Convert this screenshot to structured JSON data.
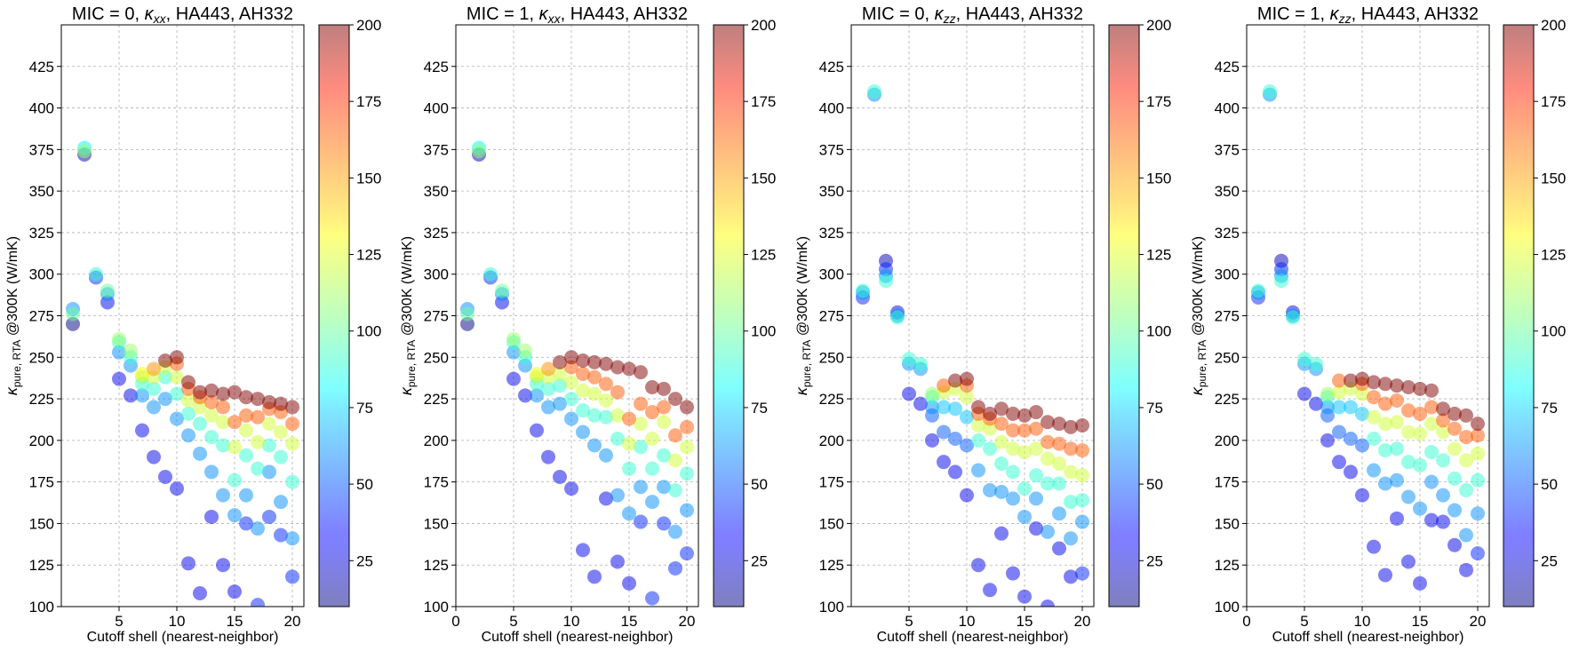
{
  "figure": {
    "xlabel": "Cutoff shell (nearest-neighbor)",
    "ylabel_main": "κ",
    "ylabel_sub": "pure, RTA",
    "ylabel_rest": " @300K (W/mK)"
  },
  "chart_data": [
    {
      "type": "scatter",
      "title_prefix": "MIC = 0, ",
      "title_kappa_sub": "xx",
      "title_suffix": ", HA443, AH332",
      "xlim": [
        0,
        21
      ],
      "ylim": [
        100,
        450
      ],
      "xticks": [
        5,
        10,
        15,
        20
      ],
      "yticks": [
        100,
        125,
        150,
        175,
        200,
        225,
        250,
        275,
        300,
        325,
        350,
        375,
        400,
        425
      ],
      "colorbar": {
        "min": 10,
        "max": 200,
        "ticks": [
          25,
          50,
          75,
          100,
          125,
          150,
          175,
          200
        ],
        "cmap": "jet",
        "alpha": 0.5
      },
      "x": [
        1,
        1,
        1,
        2,
        2,
        2,
        3,
        3,
        4,
        4,
        4,
        5,
        5,
        5,
        5,
        6,
        6,
        6,
        6,
        7,
        7,
        7,
        7,
        7,
        8,
        8,
        8,
        8,
        8,
        9,
        9,
        9,
        9,
        9,
        10,
        10,
        10,
        10,
        10,
        10,
        11,
        11,
        11,
        11,
        11,
        11,
        12,
        12,
        12,
        12,
        12,
        12,
        13,
        13,
        13,
        13,
        13,
        13,
        14,
        14,
        14,
        14,
        14,
        14,
        15,
        15,
        15,
        15,
        15,
        15,
        16,
        16,
        16,
        16,
        16,
        16,
        17,
        17,
        17,
        17,
        17,
        17,
        18,
        18,
        18,
        18,
        18,
        18,
        19,
        19,
        19,
        19,
        19,
        19,
        20,
        20,
        20,
        20,
        20,
        20
      ],
      "y": [
        270,
        279,
        276,
        372,
        376,
        374,
        298,
        300,
        283,
        288,
        290,
        237,
        253,
        259,
        261,
        227,
        245,
        250,
        254,
        206,
        227,
        234,
        238,
        240,
        190,
        220,
        231,
        238,
        243,
        178,
        225,
        238,
        244,
        248,
        171,
        213,
        228,
        238,
        246,
        250,
        126,
        203,
        216,
        224,
        231,
        235,
        108,
        192,
        210,
        220,
        226,
        229,
        154,
        181,
        202,
        215,
        223,
        230,
        125,
        167,
        197,
        211,
        220,
        228,
        109,
        155,
        176,
        196,
        211,
        229,
        150,
        167,
        191,
        206,
        215,
        226,
        101,
        147,
        183,
        199,
        214,
        225,
        154,
        181,
        197,
        210,
        219,
        223,
        143,
        163,
        190,
        205,
        217,
        222,
        118,
        141,
        175,
        198,
        210,
        220
      ],
      "c": [
        10,
        60,
        100,
        20,
        80,
        110,
        40,
        90,
        30,
        60,
        100,
        30,
        60,
        90,
        110,
        30,
        60,
        90,
        110,
        30,
        60,
        90,
        110,
        130,
        30,
        60,
        90,
        120,
        150,
        30,
        60,
        90,
        120,
        200,
        30,
        60,
        90,
        120,
        160,
        200,
        30,
        60,
        90,
        120,
        160,
        200,
        30,
        60,
        90,
        120,
        160,
        200,
        30,
        60,
        90,
        120,
        160,
        200,
        30,
        60,
        90,
        120,
        160,
        200,
        30,
        60,
        90,
        120,
        160,
        200,
        40,
        60,
        90,
        120,
        160,
        200,
        40,
        60,
        90,
        120,
        160,
        200,
        40,
        60,
        90,
        120,
        160,
        200,
        40,
        60,
        90,
        120,
        160,
        200,
        40,
        60,
        90,
        120,
        160,
        200
      ]
    },
    {
      "type": "scatter",
      "title_prefix": "MIC = 1, ",
      "title_kappa_sub": "xx",
      "title_suffix": ", HA443, AH332",
      "xlim": [
        0,
        21
      ],
      "ylim": [
        100,
        450
      ],
      "xticks": [
        0,
        5,
        10,
        15,
        20
      ],
      "yticks": [
        100,
        125,
        150,
        175,
        200,
        225,
        250,
        275,
        300,
        325,
        350,
        375,
        400,
        425
      ],
      "colorbar": {
        "min": 10,
        "max": 200,
        "ticks": [
          25,
          50,
          75,
          100,
          125,
          150,
          175,
          200
        ],
        "cmap": "jet",
        "alpha": 0.5
      },
      "x": [
        1,
        1,
        1,
        2,
        2,
        2,
        3,
        3,
        4,
        4,
        4,
        5,
        5,
        5,
        5,
        6,
        6,
        6,
        6,
        7,
        7,
        7,
        7,
        7,
        8,
        8,
        8,
        8,
        8,
        9,
        9,
        9,
        9,
        9,
        10,
        10,
        10,
        10,
        10,
        10,
        11,
        11,
        11,
        11,
        11,
        11,
        12,
        12,
        12,
        12,
        12,
        12,
        13,
        13,
        13,
        13,
        13,
        13,
        14,
        14,
        14,
        14,
        14,
        14,
        15,
        15,
        15,
        15,
        15,
        15,
        16,
        16,
        16,
        16,
        16,
        16,
        17,
        17,
        17,
        17,
        17,
        17,
        18,
        18,
        18,
        18,
        18,
        18,
        19,
        19,
        19,
        19,
        19,
        19,
        20,
        20,
        20,
        20,
        20,
        20
      ],
      "y": [
        270,
        279,
        276,
        372,
        376,
        374,
        298,
        300,
        283,
        288,
        290,
        237,
        253,
        259,
        261,
        227,
        245,
        250,
        254,
        206,
        227,
        234,
        238,
        240,
        190,
        220,
        231,
        238,
        243,
        178,
        222,
        233,
        240,
        247,
        171,
        213,
        225,
        235,
        244,
        250,
        134,
        205,
        218,
        230,
        240,
        248,
        118,
        197,
        215,
        228,
        238,
        247,
        165,
        191,
        214,
        224,
        234,
        246,
        127,
        167,
        201,
        215,
        229,
        244,
        114,
        156,
        183,
        198,
        213,
        243,
        151,
        172,
        196,
        210,
        222,
        241,
        105,
        163,
        183,
        201,
        217,
        232,
        150,
        172,
        191,
        211,
        220,
        231,
        123,
        145,
        170,
        188,
        203,
        225,
        132,
        158,
        180,
        196,
        208,
        220
      ],
      "c": [
        10,
        60,
        100,
        20,
        80,
        110,
        40,
        90,
        30,
        60,
        100,
        30,
        60,
        90,
        110,
        30,
        60,
        90,
        110,
        30,
        60,
        90,
        110,
        130,
        30,
        60,
        90,
        120,
        150,
        30,
        60,
        90,
        120,
        200,
        30,
        60,
        90,
        120,
        160,
        200,
        30,
        60,
        90,
        120,
        160,
        200,
        30,
        60,
        90,
        120,
        160,
        200,
        30,
        60,
        90,
        120,
        160,
        200,
        30,
        60,
        90,
        120,
        160,
        200,
        30,
        60,
        90,
        120,
        160,
        200,
        40,
        60,
        90,
        120,
        160,
        200,
        40,
        60,
        90,
        120,
        160,
        200,
        40,
        60,
        90,
        120,
        160,
        200,
        40,
        60,
        90,
        120,
        160,
        200,
        40,
        60,
        90,
        120,
        160,
        200
      ]
    },
    {
      "type": "scatter",
      "title_prefix": "MIC = 0, ",
      "title_kappa_sub": "zz",
      "title_suffix": ", HA443, AH332",
      "xlim": [
        0,
        21
      ],
      "ylim": [
        100,
        450
      ],
      "xticks": [
        5,
        10,
        15,
        20
      ],
      "yticks": [
        100,
        125,
        150,
        175,
        200,
        225,
        250,
        275,
        300,
        325,
        350,
        375,
        400,
        425
      ],
      "colorbar": {
        "min": 10,
        "max": 200,
        "ticks": [
          25,
          50,
          75,
          100,
          125,
          150,
          175,
          200
        ],
        "cmap": "jet",
        "alpha": 0.5
      },
      "x": [
        1,
        1,
        1,
        2,
        2,
        3,
        3,
        3,
        3,
        4,
        4,
        4,
        5,
        5,
        5,
        6,
        6,
        6,
        7,
        7,
        7,
        7,
        7,
        8,
        8,
        8,
        8,
        8,
        9,
        9,
        9,
        9,
        9,
        10,
        10,
        10,
        10,
        10,
        10,
        11,
        11,
        11,
        11,
        11,
        11,
        12,
        12,
        12,
        12,
        12,
        12,
        13,
        13,
        13,
        13,
        13,
        13,
        14,
        14,
        14,
        14,
        14,
        14,
        15,
        15,
        15,
        15,
        15,
        15,
        16,
        16,
        16,
        16,
        16,
        16,
        17,
        17,
        17,
        17,
        17,
        17,
        18,
        18,
        18,
        18,
        18,
        18,
        19,
        19,
        19,
        19,
        19,
        19,
        20,
        20,
        20,
        20,
        20,
        20
      ],
      "y": [
        286,
        289,
        290,
        408,
        410,
        308,
        303,
        299,
        296,
        277,
        275,
        274,
        228,
        246,
        249,
        222,
        243,
        246,
        200,
        215,
        220,
        226,
        228,
        187,
        205,
        220,
        229,
        233,
        181,
        201,
        219,
        231,
        236,
        167,
        197,
        214,
        226,
        233,
        237,
        125,
        182,
        200,
        209,
        216,
        220,
        110,
        170,
        195,
        207,
        213,
        216,
        144,
        169,
        186,
        199,
        210,
        219,
        120,
        165,
        181,
        195,
        206,
        216,
        106,
        154,
        171,
        193,
        206,
        215,
        147,
        165,
        179,
        195,
        207,
        217,
        100,
        145,
        174,
        189,
        199,
        211,
        135,
        156,
        174,
        186,
        198,
        210,
        118,
        141,
        163,
        181,
        195,
        208,
        120,
        151,
        164,
        179,
        194,
        209
      ],
      "c": [
        40,
        60,
        90,
        60,
        90,
        20,
        40,
        60,
        90,
        30,
        60,
        90,
        30,
        60,
        90,
        30,
        60,
        90,
        30,
        50,
        60,
        90,
        110,
        30,
        50,
        70,
        120,
        160,
        30,
        50,
        70,
        120,
        200,
        30,
        50,
        70,
        120,
        160,
        200,
        30,
        60,
        90,
        120,
        160,
        200,
        30,
        60,
        90,
        120,
        160,
        200,
        30,
        60,
        90,
        120,
        160,
        200,
        30,
        60,
        90,
        120,
        160,
        200,
        30,
        60,
        90,
        120,
        160,
        200,
        30,
        60,
        90,
        120,
        160,
        200,
        30,
        60,
        90,
        120,
        160,
        200,
        30,
        60,
        90,
        120,
        160,
        200,
        30,
        60,
        90,
        120,
        160,
        200,
        40,
        60,
        90,
        120,
        160,
        200
      ]
    },
    {
      "type": "scatter",
      "title_prefix": "MIC = 1, ",
      "title_kappa_sub": "zz",
      "title_suffix": ", HA443, AH332",
      "xlim": [
        0,
        21
      ],
      "ylim": [
        100,
        450
      ],
      "xticks": [
        0,
        5,
        10,
        15,
        20
      ],
      "yticks": [
        100,
        125,
        150,
        175,
        200,
        225,
        250,
        275,
        300,
        325,
        350,
        375,
        400,
        425
      ],
      "colorbar": {
        "min": 10,
        "max": 200,
        "ticks": [
          25,
          50,
          75,
          100,
          125,
          150,
          175,
          200
        ],
        "cmap": "jet",
        "alpha": 0.5
      },
      "x": [
        1,
        1,
        1,
        2,
        2,
        3,
        3,
        3,
        3,
        4,
        4,
        4,
        5,
        5,
        5,
        6,
        6,
        6,
        7,
        7,
        7,
        7,
        7,
        8,
        8,
        8,
        8,
        8,
        9,
        9,
        9,
        9,
        9,
        10,
        10,
        10,
        10,
        10,
        10,
        11,
        11,
        11,
        11,
        11,
        11,
        12,
        12,
        12,
        12,
        12,
        12,
        13,
        13,
        13,
        13,
        13,
        13,
        14,
        14,
        14,
        14,
        14,
        14,
        15,
        15,
        15,
        15,
        15,
        15,
        16,
        16,
        16,
        16,
        16,
        16,
        17,
        17,
        17,
        17,
        17,
        17,
        18,
        18,
        18,
        18,
        18,
        18,
        19,
        19,
        19,
        19,
        19,
        19,
        20,
        20,
        20,
        20,
        20,
        20
      ],
      "y": [
        286,
        289,
        290,
        408,
        410,
        308,
        303,
        299,
        296,
        277,
        275,
        274,
        228,
        246,
        249,
        222,
        243,
        246,
        200,
        215,
        220,
        226,
        228,
        187,
        205,
        220,
        229,
        236,
        181,
        201,
        220,
        231,
        236,
        167,
        197,
        216,
        228,
        234,
        237,
        136,
        182,
        201,
        214,
        226,
        235,
        119,
        174,
        194,
        210,
        222,
        234,
        153,
        176,
        195,
        211,
        224,
        233,
        127,
        166,
        187,
        205,
        218,
        232,
        114,
        159,
        185,
        204,
        216,
        231,
        152,
        175,
        193,
        210,
        220,
        230,
        151,
        167,
        188,
        205,
        212,
        219,
        137,
        158,
        177,
        195,
        207,
        216,
        122,
        143,
        170,
        188,
        202,
        215,
        132,
        156,
        176,
        192,
        203,
        210
      ],
      "c": [
        40,
        60,
        90,
        60,
        90,
        20,
        40,
        60,
        90,
        30,
        60,
        90,
        30,
        60,
        90,
        30,
        60,
        90,
        30,
        50,
        60,
        90,
        110,
        30,
        50,
        70,
        120,
        160,
        30,
        50,
        70,
        120,
        200,
        30,
        50,
        70,
        120,
        160,
        200,
        30,
        60,
        90,
        120,
        160,
        200,
        30,
        60,
        90,
        120,
        160,
        200,
        30,
        60,
        90,
        120,
        160,
        200,
        30,
        60,
        90,
        120,
        160,
        200,
        30,
        60,
        90,
        120,
        160,
        200,
        30,
        60,
        90,
        120,
        160,
        200,
        30,
        60,
        90,
        120,
        160,
        200,
        30,
        60,
        90,
        120,
        160,
        200,
        30,
        60,
        90,
        120,
        160,
        200,
        40,
        60,
        90,
        120,
        160,
        200
      ]
    }
  ]
}
